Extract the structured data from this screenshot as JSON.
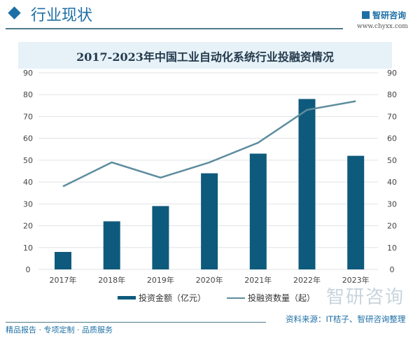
{
  "header": {
    "title": "行业现状",
    "brand": "智研咨询",
    "url": "www.chyxx.com"
  },
  "chart_data": {
    "type": "bar+line",
    "title": "2017-2023年中国工业自动化系统行业投融资情况",
    "categories": [
      "2017年",
      "2018年",
      "2019年",
      "2020年",
      "2021年",
      "2022年",
      "2023年"
    ],
    "series": [
      {
        "name": "投资金额（亿元）",
        "type": "bar",
        "axis": "left",
        "color": "#0e5a7c",
        "values": [
          8,
          22,
          29,
          44,
          53,
          78,
          52
        ]
      },
      {
        "name": "投融资数量（起）",
        "type": "line",
        "axis": "right",
        "color": "#5e8d9e",
        "values": [
          38,
          49,
          42,
          49,
          58,
          73,
          77
        ]
      }
    ],
    "ylim": [
      0,
      90
    ],
    "y2lim": [
      0,
      90
    ],
    "yticks": [
      0,
      10,
      20,
      30,
      40,
      50,
      60,
      70,
      80,
      90
    ],
    "grid": true,
    "legend": "bottom"
  },
  "footer": {
    "left": "精品报告 · 专项定制 · 品质服务",
    "source": "资料来源：IT桔子、智研咨询整理",
    "watermark": "智研咨询"
  }
}
